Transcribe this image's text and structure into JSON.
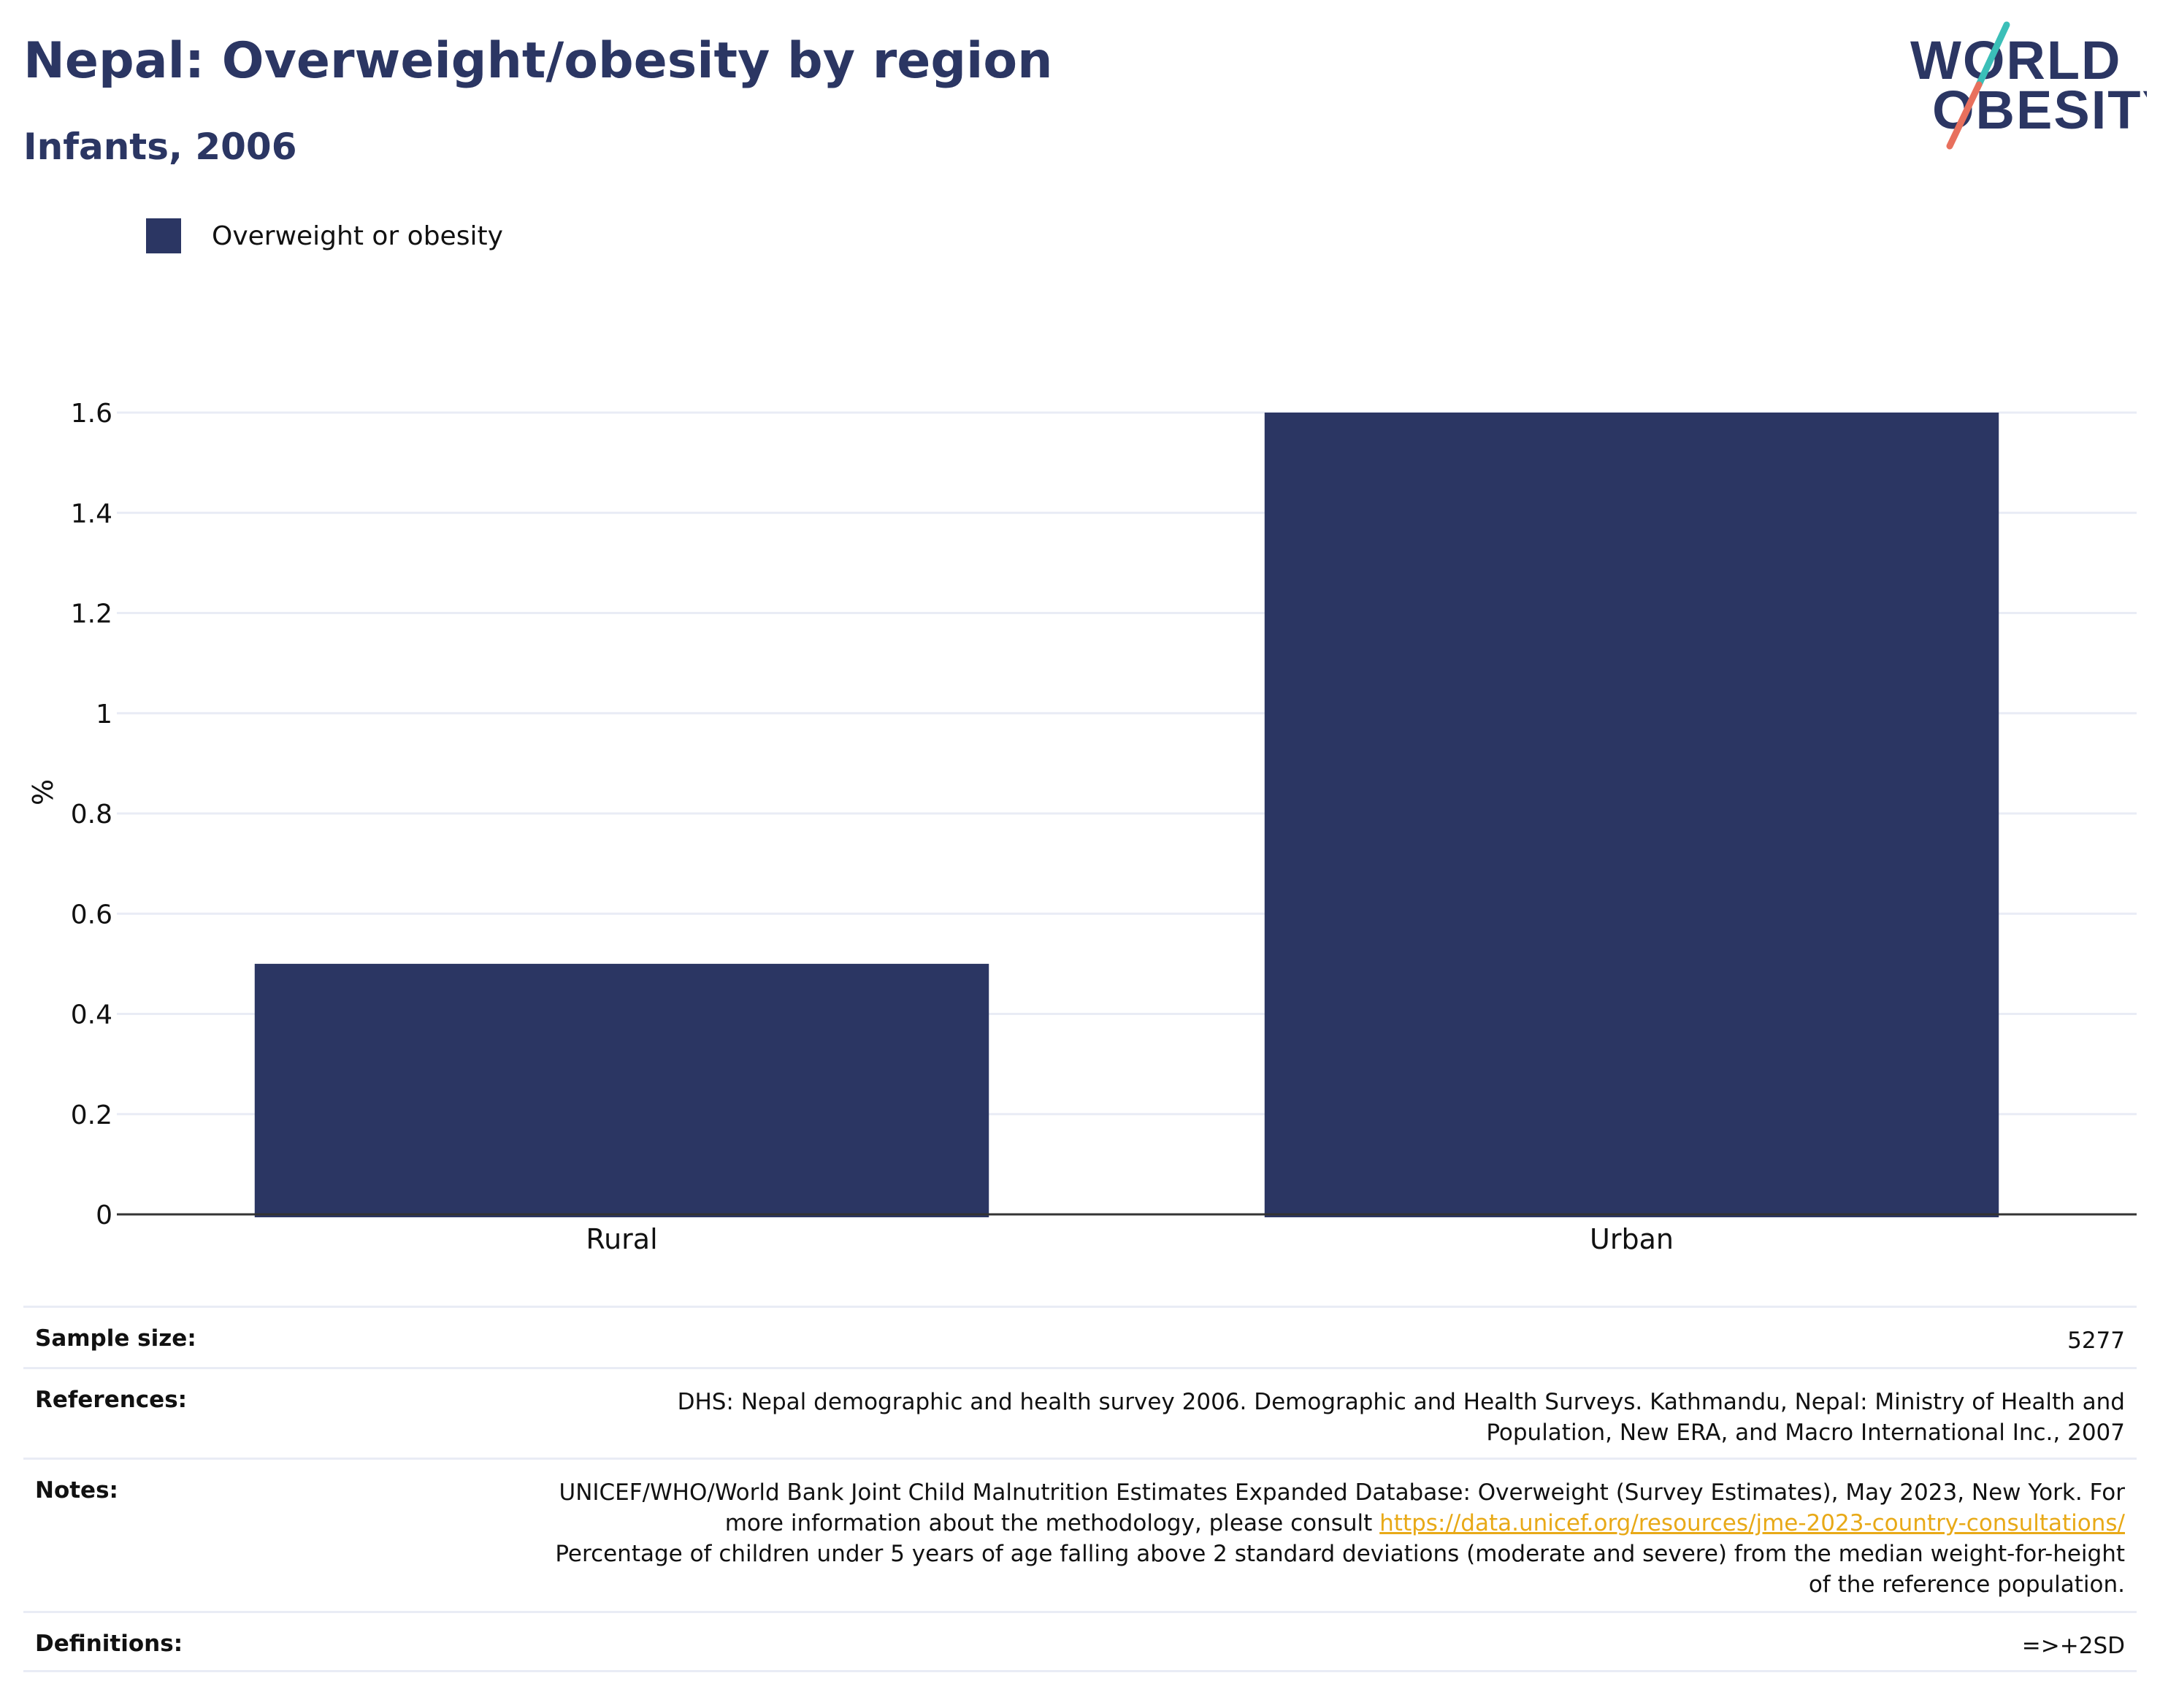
{
  "header": {
    "title": "Nepal: Overweight/obesity by region",
    "subtitle": "Infants, 2006"
  },
  "logo": {
    "line1": "WORLD",
    "line2": "OBESITY",
    "colors": {
      "text": "#2b3663",
      "slash_top": "#3bbfb8",
      "slash_bottom": "#e8705d"
    }
  },
  "colors": {
    "bar": "#2b3663",
    "grid": "#e9ecf5",
    "axis": "#333333",
    "link": "#e8a917"
  },
  "chart_data": {
    "type": "bar",
    "categories": [
      "Rural",
      "Urban"
    ],
    "series": [
      {
        "name": "Overweight or obesity",
        "values": [
          0.5,
          1.6
        ],
        "color": "#2b3663"
      }
    ],
    "ylabel": "%",
    "xlabel": "",
    "ylim": [
      0,
      1.6
    ],
    "yticks": [
      0,
      0.2,
      0.4,
      0.6,
      0.8,
      1,
      1.2,
      1.4,
      1.6
    ],
    "ytick_labels": [
      "0",
      "0.2",
      "0.4",
      "0.6",
      "0.8",
      "1",
      "1.2",
      "1.4",
      "1.6"
    ],
    "grid": true,
    "legend_position": "top-left"
  },
  "meta": {
    "sample_size_label": "Sample size:",
    "sample_size_value": "5277",
    "references_label": "References:",
    "references_value": "DHS: Nepal demographic and health survey 2006. Demographic and Health Surveys. Kathmandu, Nepal: Ministry of Health and Population, New ERA, and Macro International Inc., 2007",
    "notes_label": "Notes:",
    "notes_text_before_link": "UNICEF/WHO/World Bank Joint Child Malnutrition Estimates Expanded Database: Overweight (Survey Estimates), May 2023, New York. For more information about the methodology, please consult",
    "notes_link": "https://data.unicef.org/resources/jme-2023-country-consultations/",
    "notes_text_after_link": "Percentage of children under 5 years of age falling above 2 standard deviations (moderate and severe) from the median weight-for-height of the reference population.",
    "definitions_label": "Definitions:",
    "definitions_value": "=>+2SD"
  }
}
